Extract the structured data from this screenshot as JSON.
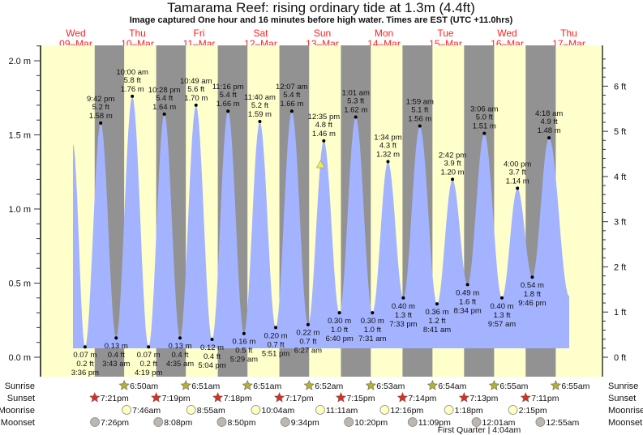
{
  "chart_data": {
    "type": "area",
    "title": "Tamarama Reef: rising  ordinary tide at 1.3m (4.4ft)",
    "subtitle": "Image captured One hour and 16 minutes before high water. Times are EST (UTC +11.0hrs)",
    "left_axis": {
      "unit": "m",
      "ylim": [
        0,
        2.0
      ],
      "ticks": [
        "0.0 m",
        "0.5 m",
        "1.0 m",
        "1.5 m",
        "2.0 m"
      ],
      "tick_values": [
        0,
        0.5,
        1.0,
        1.5,
        2.0
      ]
    },
    "right_axis": {
      "unit": "ft",
      "ticks": [
        "0 ft",
        "1 ft",
        "2 ft",
        "3 ft",
        "4 ft",
        "5 ft",
        "6 ft"
      ],
      "tick_values": [
        0,
        1,
        2,
        3,
        4,
        5,
        6
      ]
    },
    "days": [
      {
        "dow": "Wed",
        "date": "09–Mar"
      },
      {
        "dow": "Thu",
        "date": "10–Mar"
      },
      {
        "dow": "Fri",
        "date": "11–Mar"
      },
      {
        "dow": "Sat",
        "date": "12–Mar"
      },
      {
        "dow": "Sun",
        "date": "13–Mar"
      },
      {
        "dow": "Mon",
        "date": "14–Mar"
      },
      {
        "dow": "Tue",
        "date": "15–Mar"
      },
      {
        "dow": "Wed",
        "date": "16–Mar"
      },
      {
        "dow": "Thu",
        "date": "17–Mar"
      }
    ],
    "start_level_m": 1.44,
    "end_level_m": 0.41,
    "extremes": [
      {
        "day": 9,
        "time": "3:36 pm",
        "type": "low",
        "m": "0.07 m",
        "ft": "0.2 ft",
        "value": 0.07
      },
      {
        "day": 9,
        "time": "9:42 pm",
        "type": "high",
        "m": "1.58 m",
        "ft": "5.2 ft",
        "value": 1.58
      },
      {
        "day": 10,
        "time": "3:43 am",
        "type": "low",
        "m": "0.13 m",
        "ft": "0.4 ft",
        "value": 0.13
      },
      {
        "day": 10,
        "time": "10:00 am",
        "type": "high",
        "m": "1.76 m",
        "ft": "5.8 ft",
        "value": 1.76
      },
      {
        "day": 10,
        "time": "4:19 pm",
        "type": "low",
        "m": "0.07 m",
        "ft": "0.2 ft",
        "value": 0.07
      },
      {
        "day": 10,
        "time": "10:28 pm",
        "type": "high",
        "m": "1.64 m",
        "ft": "5.4 ft",
        "value": 1.64
      },
      {
        "day": 11,
        "time": "4:35 am",
        "type": "low",
        "m": "0.13 m",
        "ft": "0.4 ft",
        "value": 0.13
      },
      {
        "day": 11,
        "time": "10:49 am",
        "type": "high",
        "m": "1.70 m",
        "ft": "5.6 ft",
        "value": 1.7
      },
      {
        "day": 11,
        "time": "5:04 pm",
        "type": "low",
        "m": "0.12 m",
        "ft": "0.4 ft",
        "value": 0.12
      },
      {
        "day": 11,
        "time": "11:16 pm",
        "type": "high",
        "m": "1.66 m",
        "ft": "5.4 ft",
        "value": 1.66
      },
      {
        "day": 12,
        "time": "5:29 am",
        "type": "low",
        "m": "0.16 m",
        "ft": "0.5 ft",
        "value": 0.16
      },
      {
        "day": 12,
        "time": "11:40 am",
        "type": "high",
        "m": "1.59 m",
        "ft": "5.2 ft",
        "value": 1.59
      },
      {
        "day": 12,
        "time": "5:51 pm",
        "type": "low",
        "m": "0.20 m",
        "ft": "0.7 ft",
        "value": 0.2
      },
      {
        "day": 13,
        "time": "12:07 am",
        "type": "high",
        "m": "1.66 m",
        "ft": "5.4 ft",
        "value": 1.66
      },
      {
        "day": 13,
        "time": "6:27 am",
        "type": "low",
        "m": "0.22 m",
        "ft": "0.7 ft",
        "value": 0.22
      },
      {
        "day": 13,
        "time": "12:35 pm",
        "type": "high",
        "m": "1.46 m",
        "ft": "4.8 ft",
        "value": 1.46
      },
      {
        "day": 13,
        "time": "6:40 pm",
        "type": "low",
        "m": "0.30 m",
        "ft": "1.0 ft",
        "value": 0.3
      },
      {
        "day": 14,
        "time": "1:01 am",
        "type": "high",
        "m": "1.62 m",
        "ft": "5.3 ft",
        "value": 1.62
      },
      {
        "day": 14,
        "time": "7:31 am",
        "type": "low",
        "m": "0.30 m",
        "ft": "1.0 ft",
        "value": 0.3
      },
      {
        "day": 14,
        "time": "1:34 pm",
        "type": "high",
        "m": "1.32 m",
        "ft": "4.3 ft",
        "value": 1.32
      },
      {
        "day": 14,
        "time": "7:33 pm",
        "type": "low",
        "m": "0.40 m",
        "ft": "1.3 ft",
        "value": 0.4
      },
      {
        "day": 15,
        "time": "1:59 am",
        "type": "high",
        "m": "1.56 m",
        "ft": "5.1 ft",
        "value": 1.56
      },
      {
        "day": 15,
        "time": "8:41 am",
        "type": "low",
        "m": "0.36 m",
        "ft": "1.2 ft",
        "value": 0.36
      },
      {
        "day": 15,
        "time": "2:42 pm",
        "type": "high",
        "m": "1.20 m",
        "ft": "3.9 ft",
        "value": 1.2
      },
      {
        "day": 15,
        "time": "8:34 pm",
        "type": "low",
        "m": "0.49 m",
        "ft": "1.6 ft",
        "value": 0.49
      },
      {
        "day": 16,
        "time": "3:06 am",
        "type": "high",
        "m": "1.51 m",
        "ft": "5.0 ft",
        "value": 1.51
      },
      {
        "day": 16,
        "time": "9:57 am",
        "type": "low",
        "m": "0.40 m",
        "ft": "1.3 ft",
        "value": 0.4
      },
      {
        "day": 16,
        "time": "4:00 pm",
        "type": "high",
        "m": "1.14 m",
        "ft": "3.7 ft",
        "value": 1.14
      },
      {
        "day": 16,
        "time": "9:46 pm",
        "type": "low",
        "m": "0.54 m",
        "ft": "1.8 ft",
        "value": 0.54
      },
      {
        "day": 17,
        "time": "4:18 am",
        "type": "high",
        "m": "1.48 m",
        "ft": "4.9 ft",
        "value": 1.48
      }
    ],
    "current": {
      "day": 13,
      "time": "11:19 am",
      "value": 1.3
    },
    "rows": {
      "sunrise_label": "Sunrise",
      "sunset_label": "Sunset",
      "moonrise_label": "Moonrise",
      "moonset_label": "Moonset"
    },
    "sunrise": [
      {
        "day": 10,
        "time": "6:50am"
      },
      {
        "day": 11,
        "time": "6:51am"
      },
      {
        "day": 12,
        "time": "6:51am"
      },
      {
        "day": 13,
        "time": "6:52am"
      },
      {
        "day": 14,
        "time": "6:53am"
      },
      {
        "day": 15,
        "time": "6:54am"
      },
      {
        "day": 16,
        "time": "6:55am"
      },
      {
        "day": 17,
        "time": "6:55am"
      }
    ],
    "sunset": [
      {
        "day": 9,
        "time": "7:21pm"
      },
      {
        "day": 10,
        "time": "7:19pm"
      },
      {
        "day": 11,
        "time": "7:18pm"
      },
      {
        "day": 12,
        "time": "7:17pm"
      },
      {
        "day": 13,
        "time": "7:15pm"
      },
      {
        "day": 14,
        "time": "7:14pm"
      },
      {
        "day": 15,
        "time": "7:13pm"
      },
      {
        "day": 16,
        "time": "7:11pm"
      }
    ],
    "moonrise": [
      {
        "day": 10,
        "time": "7:46am"
      },
      {
        "day": 11,
        "time": "8:55am"
      },
      {
        "day": 12,
        "time": "10:04am"
      },
      {
        "day": 13,
        "time": "11:11am"
      },
      {
        "day": 14,
        "time": "12:16pm"
      },
      {
        "day": 15,
        "time": "1:18pm"
      },
      {
        "day": 16,
        "time": "2:15pm"
      }
    ],
    "moonset": [
      {
        "day": 9,
        "time": "7:26pm"
      },
      {
        "day": 10,
        "time": "8:08pm"
      },
      {
        "day": 11,
        "time": "8:50pm"
      },
      {
        "day": 12,
        "time": "9:34pm"
      },
      {
        "day": 13,
        "time": "10:20pm"
      },
      {
        "day": 14,
        "time": "11:09pm"
      },
      {
        "day": 16,
        "time": "12:01am"
      },
      {
        "day": 17,
        "time": "12:55am"
      }
    ],
    "moon_phase": "First Quarter | 4:04am",
    "colors": {
      "day": "#ffffcc",
      "night": "#929292",
      "water": "#a3b3ff",
      "date_label": "#ff2020",
      "sunrise_icon": "#b4b030",
      "sunset_icon": "#d83020",
      "moonrise_icon": "#ffffc0",
      "moonset_icon": "#bcb8b0",
      "current_marker": "#f0f040"
    }
  }
}
